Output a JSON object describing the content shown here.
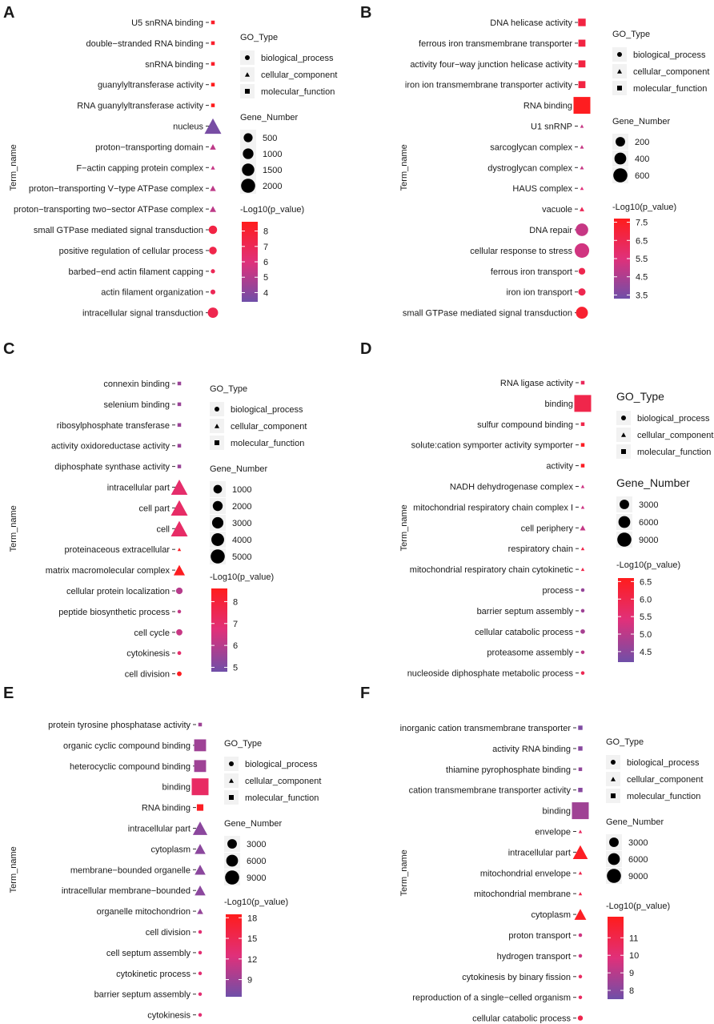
{
  "figure": {
    "go_type_title": "GO_Type",
    "gene_number_title": "Gene_Number",
    "color_title": "-Log10(p_value)",
    "y_axis_label": "Term_name",
    "go_types": [
      {
        "name": "biological_process",
        "shape": "circle"
      },
      {
        "name": "cellular_component",
        "shape": "triangle"
      },
      {
        "name": "molecular_function",
        "shape": "square"
      }
    ],
    "colors": {
      "low": "#6f4fa8",
      "mid": "#e0307a",
      "high": "#ff1c1c"
    }
  },
  "chart_data": [
    {
      "type": "scatter",
      "panel": "A",
      "y_axis_label": "Term_name",
      "legend": {
        "go_title": "GO_Type",
        "go_items": [
          "biological_process",
          "cellular_component",
          "molecular_function"
        ],
        "size_title": "Gene_Number",
        "size_ticks": [
          500,
          1000,
          1500,
          2000
        ],
        "color_title": "-Log10(p_value)",
        "color_ticks": [
          8,
          7,
          6,
          5,
          4
        ],
        "color_range": [
          3.4,
          8.6
        ]
      },
      "points": [
        {
          "term": "U5 snRNA binding",
          "go_type": "molecular_function",
          "gene_number": 60,
          "neg_log10_p": 8.2
        },
        {
          "term": "double−stranded RNA binding",
          "go_type": "molecular_function",
          "gene_number": 60,
          "neg_log10_p": 8.1
        },
        {
          "term": "snRNA binding",
          "go_type": "molecular_function",
          "gene_number": 80,
          "neg_log10_p": 8.2
        },
        {
          "term": "guanylyltransferase activity",
          "go_type": "molecular_function",
          "gene_number": 60,
          "neg_log10_p": 8.6
        },
        {
          "term": "RNA guanylyltransferase activity",
          "go_type": "molecular_function",
          "gene_number": 60,
          "neg_log10_p": 8.6
        },
        {
          "term": "nucleus",
          "go_type": "cellular_component",
          "gene_number": 2400,
          "neg_log10_p": 3.6
        },
        {
          "term": "proton−transporting domain",
          "go_type": "cellular_component",
          "gene_number": 300,
          "neg_log10_p": 5.2
        },
        {
          "term": "F−actin capping protein complex",
          "go_type": "cellular_component",
          "gene_number": 150,
          "neg_log10_p": 5.4
        },
        {
          "term": "proton−transporting V−type ATPase complex",
          "go_type": "cellular_component",
          "gene_number": 300,
          "neg_log10_p": 5.2
        },
        {
          "term": "proton−transporting two−sector ATPase complex",
          "go_type": "cellular_component",
          "gene_number": 350,
          "neg_log10_p": 5.2
        },
        {
          "term": "small GTPase mediated signal transduction",
          "go_type": "biological_process",
          "gene_number": 600,
          "neg_log10_p": 7.5
        },
        {
          "term": "positive regulation of cellular process",
          "go_type": "biological_process",
          "gene_number": 500,
          "neg_log10_p": 7.3
        },
        {
          "term": "barbed−end actin filament capping",
          "go_type": "biological_process",
          "gene_number": 150,
          "neg_log10_p": 7.0
        },
        {
          "term": "actin filament organization",
          "go_type": "biological_process",
          "gene_number": 200,
          "neg_log10_p": 7.0
        },
        {
          "term": "intracellular signal transduction",
          "go_type": "biological_process",
          "gene_number": 900,
          "neg_log10_p": 7.2
        }
      ]
    },
    {
      "type": "scatter",
      "panel": "B",
      "y_axis_label": "Term_name",
      "legend": {
        "go_title": "GO_Type",
        "go_items": [
          "biological_process",
          "cellular_component",
          "molecular_function"
        ],
        "size_title": "Gene_Number",
        "size_ticks": [
          200,
          400,
          600
        ],
        "color_title": "-Log10(p_value)",
        "color_ticks": [
          7.5,
          6.5,
          5.5,
          4.5,
          3.5
        ],
        "color_range": [
          3.3,
          7.7
        ]
      },
      "points": [
        {
          "term": "DNA helicase activity",
          "go_type": "molecular_function",
          "gene_number": 150,
          "neg_log10_p": 6.8
        },
        {
          "term": "ferrous iron transmembrane transporter",
          "go_type": "molecular_function",
          "gene_number": 130,
          "neg_log10_p": 6.8
        },
        {
          "term": "activity four−way junction helicase activity",
          "go_type": "molecular_function",
          "gene_number": 130,
          "neg_log10_p": 6.8
        },
        {
          "term": "iron ion transmembrane transporter activity",
          "go_type": "molecular_function",
          "gene_number": 130,
          "neg_log10_p": 6.8
        },
        {
          "term": "RNA binding",
          "go_type": "molecular_function",
          "gene_number": 750,
          "neg_log10_p": 7.6
        },
        {
          "term": "U1 snRNP",
          "go_type": "cellular_component",
          "gene_number": 30,
          "neg_log10_p": 5.0
        },
        {
          "term": "sarcoglycan complex",
          "go_type": "cellular_component",
          "gene_number": 40,
          "neg_log10_p": 5.0
        },
        {
          "term": "dystroglycan complex",
          "go_type": "cellular_component",
          "gene_number": 40,
          "neg_log10_p": 5.0
        },
        {
          "term": "HAUS complex",
          "go_type": "cellular_component",
          "gene_number": 30,
          "neg_log10_p": 5.5
        },
        {
          "term": "vacuole",
          "go_type": "cellular_component",
          "gene_number": 60,
          "neg_log10_p": 6.3
        },
        {
          "term": "DNA repair",
          "go_type": "biological_process",
          "gene_number": 420,
          "neg_log10_p": 5.0
        },
        {
          "term": "cellular response to stress",
          "go_type": "biological_process",
          "gene_number": 560,
          "neg_log10_p": 5.2
        },
        {
          "term": "ferrous iron transport",
          "go_type": "biological_process",
          "gene_number": 120,
          "neg_log10_p": 6.5
        },
        {
          "term": "iron ion transport",
          "go_type": "biological_process",
          "gene_number": 140,
          "neg_log10_p": 6.5
        },
        {
          "term": "small GTPase mediated signal transduction",
          "go_type": "biological_process",
          "gene_number": 380,
          "neg_log10_p": 7.2
        }
      ]
    },
    {
      "type": "scatter",
      "panel": "C",
      "y_axis_label": "Term_name",
      "legend": {
        "go_title": "GO_Type",
        "go_items": [
          "biological_process",
          "cellular_component",
          "molecular_function"
        ],
        "size_title": "Gene_Number",
        "size_ticks": [
          1000,
          2000,
          3000,
          4000,
          5000
        ],
        "color_title": "-Log10(p_value)",
        "color_ticks": [
          8,
          7,
          6,
          5
        ],
        "color_range": [
          4.8,
          8.6
        ]
      },
      "points": [
        {
          "term": "connexin binding",
          "go_type": "molecular_function",
          "gene_number": 50,
          "neg_log10_p": 5.5
        },
        {
          "term": "selenium binding",
          "go_type": "molecular_function",
          "gene_number": 50,
          "neg_log10_p": 5.5
        },
        {
          "term": "ribosylphosphate transferase",
          "go_type": "molecular_function",
          "gene_number": 50,
          "neg_log10_p": 5.5
        },
        {
          "term": "activity oxidoreductase activity",
          "go_type": "molecular_function",
          "gene_number": 50,
          "neg_log10_p": 5.5
        },
        {
          "term": "diphosphate synthase activity",
          "go_type": "molecular_function",
          "gene_number": 50,
          "neg_log10_p": 5.5
        },
        {
          "term": "intracellular part",
          "go_type": "cellular_component",
          "gene_number": 5600,
          "neg_log10_p": 7.0
        },
        {
          "term": "cell part",
          "go_type": "cellular_component",
          "gene_number": 5800,
          "neg_log10_p": 7.1
        },
        {
          "term": "cell",
          "go_type": "cellular_component",
          "gene_number": 5800,
          "neg_log10_p": 7.1
        },
        {
          "term": "proteinaceous extracellular",
          "go_type": "cellular_component",
          "gene_number": 250,
          "neg_log10_p": 8.4
        },
        {
          "term": "matrix macromolecular complex",
          "go_type": "cellular_component",
          "gene_number": 2600,
          "neg_log10_p": 8.5
        },
        {
          "term": "cellular protein localization",
          "go_type": "biological_process",
          "gene_number": 900,
          "neg_log10_p": 6.0
        },
        {
          "term": "peptide biosynthetic process",
          "go_type": "biological_process",
          "gene_number": 250,
          "neg_log10_p": 6.2
        },
        {
          "term": "cell cycle",
          "go_type": "biological_process",
          "gene_number": 800,
          "neg_log10_p": 6.3
        },
        {
          "term": "cytokinesis",
          "go_type": "biological_process",
          "gene_number": 300,
          "neg_log10_p": 7.0
        },
        {
          "term": "cell division",
          "go_type": "biological_process",
          "gene_number": 450,
          "neg_log10_p": 8.5
        }
      ]
    },
    {
      "type": "scatter",
      "panel": "D",
      "y_axis_label": "Term_name",
      "legend": {
        "go_title": "GO_Type",
        "go_items": [
          "biological_process",
          "cellular_component",
          "molecular_function"
        ],
        "size_title": "Gene_Number",
        "size_ticks": [
          3000,
          6000,
          9000
        ],
        "color_title": "-Log10(p_value)",
        "color_ticks": [
          6.5,
          6.0,
          5.5,
          5.0,
          4.5
        ],
        "color_range": [
          4.2,
          6.6
        ]
      },
      "points": [
        {
          "term": "RNA ligase activity",
          "go_type": "molecular_function",
          "gene_number": 200,
          "neg_log10_p": 5.8
        },
        {
          "term": "binding",
          "go_type": "molecular_function",
          "gene_number": 11000,
          "neg_log10_p": 6.0
        },
        {
          "term": "sulfur compound binding",
          "go_type": "molecular_function",
          "gene_number": 300,
          "neg_log10_p": 6.0
        },
        {
          "term": "solute:cation symporter activity symporter",
          "go_type": "molecular_function",
          "gene_number": 300,
          "neg_log10_p": 6.5
        },
        {
          "term": "activity",
          "go_type": "molecular_function",
          "gene_number": 300,
          "neg_log10_p": 6.5
        },
        {
          "term": "NADH dehydrogenase complex",
          "go_type": "cellular_component",
          "gene_number": 150,
          "neg_log10_p": 5.2
        },
        {
          "term": "mitochondrial respiratory chain complex I",
          "go_type": "cellular_component",
          "gene_number": 150,
          "neg_log10_p": 5.2
        },
        {
          "term": "cell periphery",
          "go_type": "cellular_component",
          "gene_number": 1200,
          "neg_log10_p": 5.1
        },
        {
          "term": "respiratory chain",
          "go_type": "cellular_component",
          "gene_number": 150,
          "neg_log10_p": 6.0
        },
        {
          "term": "mitochondrial respiratory chain cytokinetic",
          "go_type": "cellular_component",
          "gene_number": 150,
          "neg_log10_p": 6.0
        },
        {
          "term": "process",
          "go_type": "biological_process",
          "gene_number": 150,
          "neg_log10_p": 4.6
        },
        {
          "term": "barrier septum assembly",
          "go_type": "biological_process",
          "gene_number": 150,
          "neg_log10_p": 4.7
        },
        {
          "term": "cellular catabolic process",
          "go_type": "biological_process",
          "gene_number": 800,
          "neg_log10_p": 4.8
        },
        {
          "term": "proteasome assembly",
          "go_type": "biological_process",
          "gene_number": 200,
          "neg_log10_p": 5.0
        },
        {
          "term": "nucleoside diphosphate metabolic process",
          "go_type": "biological_process",
          "gene_number": 150,
          "neg_log10_p": 5.9
        }
      ]
    },
    {
      "type": "scatter",
      "panel": "E",
      "y_axis_label": "Term_name",
      "legend": {
        "go_title": "GO_Type",
        "go_items": [
          "biological_process",
          "cellular_component",
          "molecular_function"
        ],
        "size_title": "Gene_Number",
        "size_ticks": [
          3000,
          6000,
          9000
        ],
        "color_title": "-Log10(p_value)",
        "color_ticks": [
          18,
          15,
          12,
          9
        ],
        "color_range": [
          6.5,
          18.5
        ]
      },
      "points": [
        {
          "term": "protein tyrosine phosphatase activity",
          "go_type": "molecular_function",
          "gene_number": 200,
          "neg_log10_p": 9.0
        },
        {
          "term": "organic cyclic compound binding",
          "go_type": "molecular_function",
          "gene_number": 6000,
          "neg_log10_p": 9.0
        },
        {
          "term": "heterocyclic compound binding",
          "go_type": "molecular_function",
          "gene_number": 6000,
          "neg_log10_p": 9.0
        },
        {
          "term": "binding",
          "go_type": "molecular_function",
          "gene_number": 12000,
          "neg_log10_p": 14.0
        },
        {
          "term": "RNA binding",
          "go_type": "molecular_function",
          "gene_number": 1800,
          "neg_log10_p": 18.0
        },
        {
          "term": "intracellular part",
          "go_type": "cellular_component",
          "gene_number": 9000,
          "neg_log10_p": 8.0
        },
        {
          "term": "cytoplasm",
          "go_type": "cellular_component",
          "gene_number": 5000,
          "neg_log10_p": 8.0
        },
        {
          "term": "membrane−bounded organelle",
          "go_type": "cellular_component",
          "gene_number": 5000,
          "neg_log10_p": 8.0
        },
        {
          "term": "intracellular membrane−bounded",
          "go_type": "cellular_component",
          "gene_number": 5000,
          "neg_log10_p": 8.0
        },
        {
          "term": "organelle mitochondrion",
          "go_type": "cellular_component",
          "gene_number": 1600,
          "neg_log10_p": 8.5
        },
        {
          "term": "cell division",
          "go_type": "biological_process",
          "gene_number": 300,
          "neg_log10_p": 13.0
        },
        {
          "term": "cell septum assembly",
          "go_type": "biological_process",
          "gene_number": 200,
          "neg_log10_p": 13.0
        },
        {
          "term": "cytokinetic process",
          "go_type": "biological_process",
          "gene_number": 200,
          "neg_log10_p": 13.0
        },
        {
          "term": "barrier septum assembly",
          "go_type": "biological_process",
          "gene_number": 200,
          "neg_log10_p": 13.0
        },
        {
          "term": "cytokinesis",
          "go_type": "biological_process",
          "gene_number": 300,
          "neg_log10_p": 13.0
        }
      ]
    },
    {
      "type": "scatter",
      "panel": "F",
      "y_axis_label": "Term_name",
      "legend": {
        "go_title": "GO_Type",
        "go_items": [
          "biological_process",
          "cellular_component",
          "molecular_function"
        ],
        "size_title": "Gene_Number",
        "size_ticks": [
          3000,
          6000,
          9000
        ],
        "color_title": "-Log10(p_value)",
        "color_ticks": [
          11,
          10,
          9,
          8
        ],
        "color_range": [
          7.5,
          12.2
        ]
      },
      "points": [
        {
          "term": "inorganic cation transmembrane transporter",
          "go_type": "molecular_function",
          "gene_number": 800,
          "neg_log10_p": 7.8
        },
        {
          "term": "activity RNA binding",
          "go_type": "molecular_function",
          "gene_number": 800,
          "neg_log10_p": 8.0
        },
        {
          "term": "thiamine pyrophosphate binding",
          "go_type": "molecular_function",
          "gene_number": 150,
          "neg_log10_p": 8.2
        },
        {
          "term": "cation transmembrane transporter activity",
          "go_type": "molecular_function",
          "gene_number": 800,
          "neg_log10_p": 8.0
        },
        {
          "term": "binding",
          "go_type": "molecular_function",
          "gene_number": 12000,
          "neg_log10_p": 8.5
        },
        {
          "term": "envelope",
          "go_type": "cellular_component",
          "gene_number": 400,
          "neg_log10_p": 10.5
        },
        {
          "term": "intracellular part",
          "go_type": "cellular_component",
          "gene_number": 9500,
          "neg_log10_p": 12.0
        },
        {
          "term": "mitochondrial envelope",
          "go_type": "cellular_component",
          "gene_number": 300,
          "neg_log10_p": 11.0
        },
        {
          "term": "mitochondrial membrane",
          "go_type": "cellular_component",
          "gene_number": 300,
          "neg_log10_p": 11.0
        },
        {
          "term": "cytoplasm",
          "go_type": "cellular_component",
          "gene_number": 6000,
          "neg_log10_p": 12.0
        },
        {
          "term": "proton transport",
          "go_type": "biological_process",
          "gene_number": 400,
          "neg_log10_p": 9.5
        },
        {
          "term": "hydrogen transport",
          "go_type": "biological_process",
          "gene_number": 400,
          "neg_log10_p": 9.5
        },
        {
          "term": "cytokinesis by binary fission",
          "go_type": "biological_process",
          "gene_number": 300,
          "neg_log10_p": 10.5
        },
        {
          "term": "reproduction of a single−celled organism",
          "go_type": "biological_process",
          "gene_number": 300,
          "neg_log10_p": 10.5
        },
        {
          "term": "cellular catabolic process",
          "go_type": "biological_process",
          "gene_number": 1100,
          "neg_log10_p": 11.0
        }
      ]
    }
  ]
}
